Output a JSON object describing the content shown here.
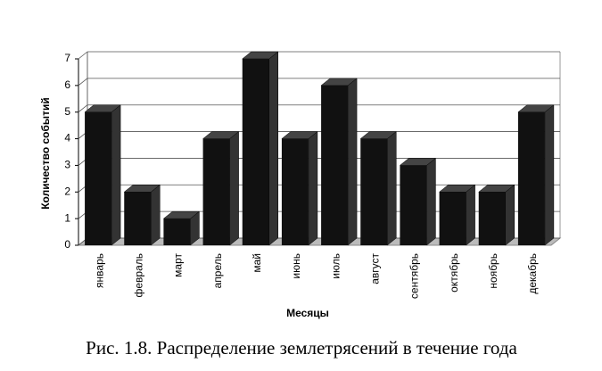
{
  "chart_data": {
    "type": "bar3d",
    "y_label": "Количество событий",
    "x_label": "Месяцы",
    "caption": "Рис. 1.8.  Распределение землетрясений в течение года",
    "categories": [
      "январь",
      "февраль",
      "март",
      "апрель",
      "май",
      "июнь",
      "июль",
      "август",
      "сентябрь",
      "октябрь",
      "ноябрь",
      "декабрь"
    ],
    "values": [
      5,
      2,
      1,
      4,
      7,
      4,
      6,
      4,
      3,
      2,
      2,
      5
    ],
    "color": "#111111",
    "ylim": [
      0,
      7
    ],
    "yticks": [
      0,
      1,
      2,
      3,
      4,
      5,
      6,
      7
    ],
    "grid": true
  }
}
